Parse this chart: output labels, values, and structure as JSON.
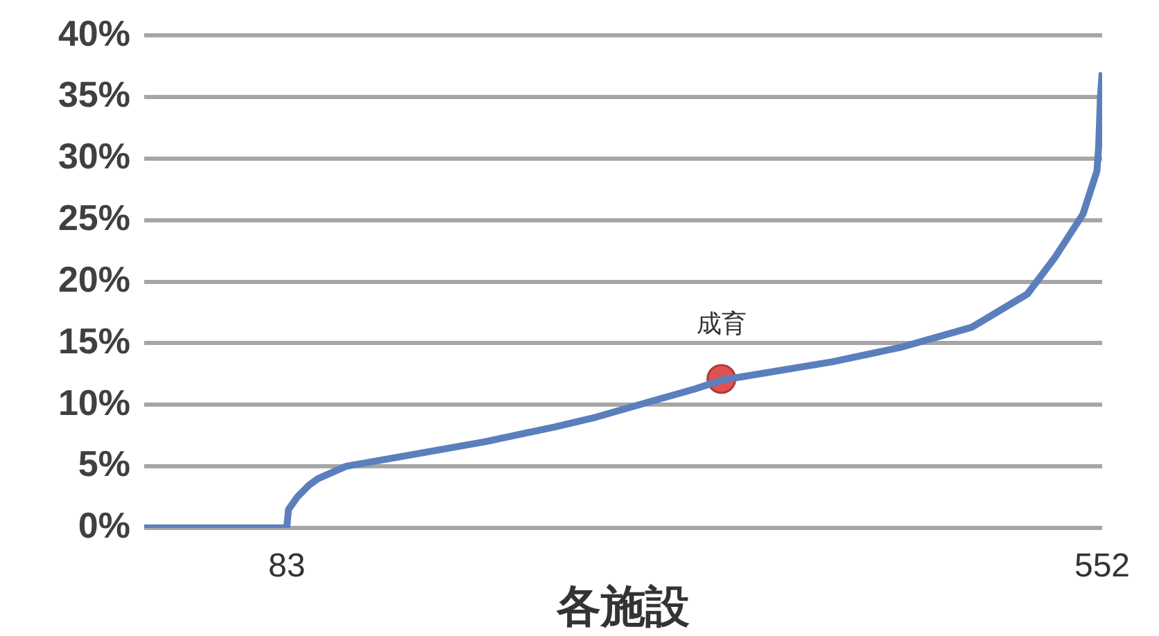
{
  "chart_data": {
    "type": "line",
    "xlabel": "各施設",
    "xlim": [
      1,
      552
    ],
    "xticks": [
      83,
      552
    ],
    "ylim": [
      0,
      40
    ],
    "yticks": [
      {
        "value": 0,
        "label": "0%"
      },
      {
        "value": 5,
        "label": "5%"
      },
      {
        "value": 10,
        "label": "10%"
      },
      {
        "value": 15,
        "label": "15%"
      },
      {
        "value": 20,
        "label": "20%"
      },
      {
        "value": 25,
        "label": "25%"
      },
      {
        "value": 30,
        "label": "30%"
      },
      {
        "value": 35,
        "label": "35%"
      },
      {
        "value": 40,
        "label": "40%"
      }
    ],
    "grid": "y",
    "legend": false,
    "marker": "none",
    "series": [
      {
        "type": "line",
        "color": "#5b7fbd",
        "x": [
          1,
          83,
          84,
          89,
          96,
          101,
          117,
          157,
          197,
          237,
          261,
          293,
          318,
          333,
          397,
          437,
          477,
          509,
          525,
          541,
          549,
          550,
          551,
          552
        ],
        "values": [
          0,
          0,
          1.5,
          2.5,
          3.5,
          4,
          5,
          6,
          7,
          8.2,
          9,
          10.3,
          11.3,
          12,
          13.5,
          14.7,
          16.3,
          19,
          22,
          25.5,
          29,
          31,
          35,
          37
        ]
      },
      {
        "type": "scatter",
        "name": "成育",
        "marker": "circle",
        "color": "#e05252",
        "x": [
          333
        ],
        "values": [
          12.1
        ]
      }
    ]
  }
}
